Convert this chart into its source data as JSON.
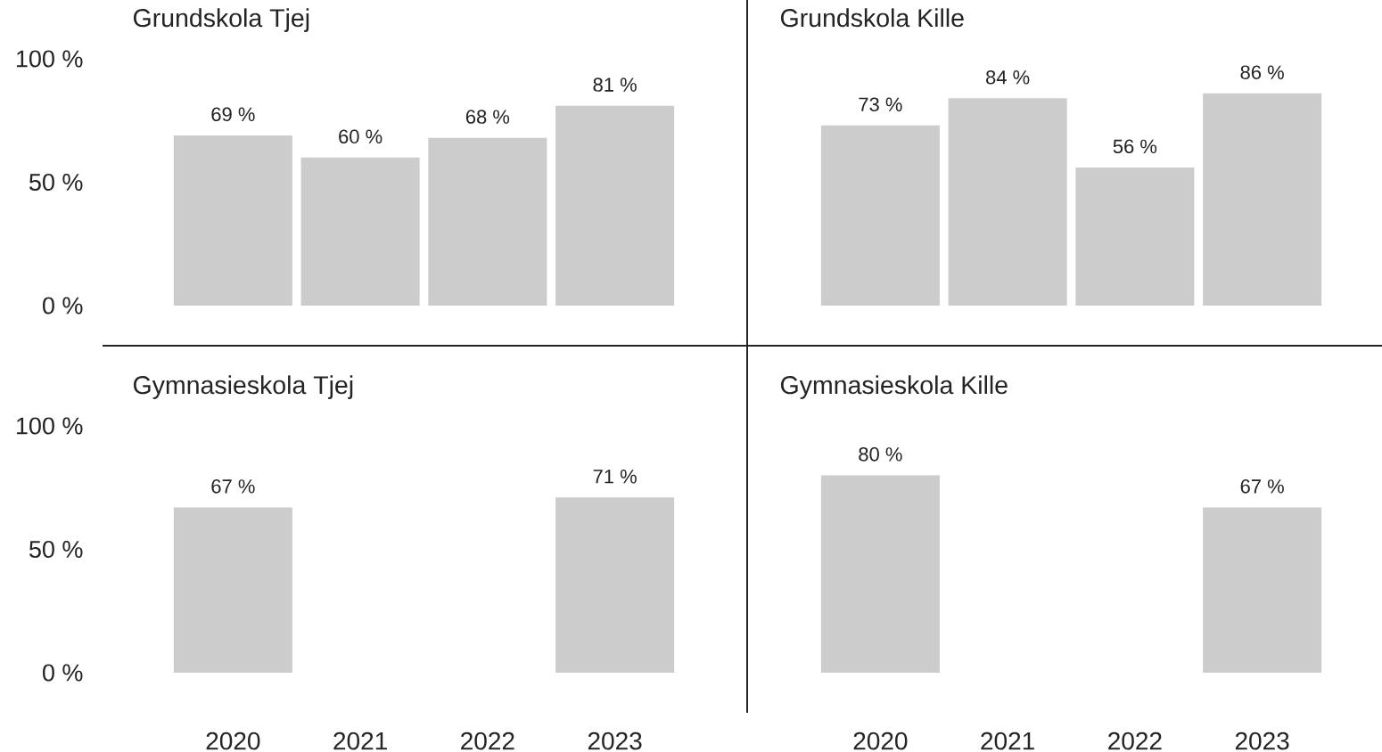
{
  "chart_data": [
    {
      "type": "bar",
      "title": "Grundskola Tjej",
      "categories": [
        "2020",
        "2021",
        "2022",
        "2023"
      ],
      "values": [
        69,
        60,
        68,
        81
      ],
      "value_labels": [
        "69 %",
        "60 %",
        "68 %",
        "81 %"
      ],
      "color": "#cccccc",
      "ylim": [
        0,
        100
      ],
      "yticks": [
        {
          "value": 0,
          "label": "0 %"
        },
        {
          "value": 50,
          "label": "50 %"
        },
        {
          "value": 100,
          "label": "100 %"
        }
      ],
      "tick_labels": "y"
    },
    {
      "type": "bar",
      "title": "Grundskola Kille",
      "categories": [
        "2020",
        "2021",
        "2022",
        "2023"
      ],
      "values": [
        73,
        84,
        56,
        86
      ],
      "value_labels": [
        "73 %",
        "84 %",
        "56 %",
        "86 %"
      ],
      "color": "#cccccc",
      "ylim": [
        0,
        100
      ],
      "tick_labels": false
    },
    {
      "type": "bar",
      "title": "Gymnasieskola Tjej",
      "categories": [
        "2020",
        "2021",
        "2022",
        "2023"
      ],
      "values": [
        67,
        null,
        null,
        71
      ],
      "value_labels": [
        "67 %",
        null,
        null,
        "71 %"
      ],
      "color": "#cccccc",
      "ylim": [
        0,
        100
      ],
      "yticks": [
        {
          "value": 0,
          "label": "0 %"
        },
        {
          "value": 50,
          "label": "50 %"
        },
        {
          "value": 100,
          "label": "100 %"
        }
      ]
    },
    {
      "type": "bar",
      "title": "Gymnasieskola Kille",
      "categories": [
        "2020",
        "2021",
        "2022",
        "2023"
      ],
      "values": [
        80,
        null,
        null,
        67
      ],
      "value_labels": [
        "80 %",
        null,
        null,
        "67 %"
      ],
      "color": "#cccccc",
      "ylim": [
        0,
        100
      ],
      "tick_labels": "x"
    }
  ]
}
